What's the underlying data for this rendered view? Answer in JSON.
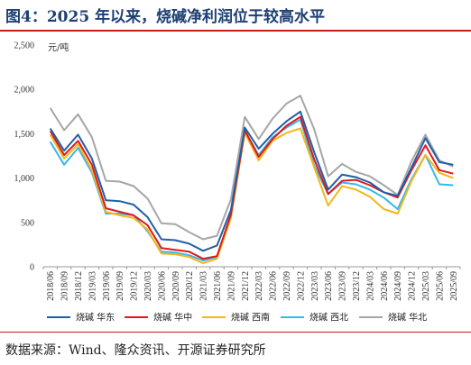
{
  "title": "图4：2025 年以来，烧碱净利润位于较高水平",
  "source": "数据来源：Wind、隆众资讯、开源证券研究所",
  "chart_data": {
    "type": "line",
    "ylabel": "元/吨",
    "ylim": [
      0,
      2500
    ],
    "yticks": [
      "0",
      "500",
      "1,000",
      "1,500",
      "2,000",
      "2,500"
    ],
    "grid": false,
    "legend_position": "bottom",
    "categories": [
      "2018/06",
      "2018/09",
      "2018/12",
      "2019/03",
      "2019/06",
      "2019/09",
      "2019/12",
      "2020/03",
      "2020/06",
      "2020/09",
      "2020/12",
      "2021/03",
      "2021/06",
      "2021/09",
      "2021/12",
      "2022/03",
      "2022/06",
      "2022/09",
      "2022/12",
      "2023/03",
      "2023/06",
      "2023/09",
      "2023/12",
      "2024/03",
      "2024/06",
      "2024/09",
      "2024/12",
      "2025/03",
      "2025/06",
      "2025/09"
    ],
    "series": [
      {
        "name": "烧碱 华东",
        "color": "#1f5fa8",
        "values": [
          1560,
          1310,
          1490,
          1220,
          750,
          740,
          700,
          560,
          310,
          300,
          260,
          180,
          240,
          640,
          1570,
          1330,
          1500,
          1640,
          1750,
          1290,
          870,
          1040,
          1010,
          950,
          840,
          800,
          1120,
          1450,
          1180,
          1150
        ]
      },
      {
        "name": "烧碱 华中",
        "color": "#e0191c",
        "values": [
          1530,
          1260,
          1420,
          1150,
          660,
          620,
          580,
          470,
          210,
          190,
          170,
          90,
          120,
          590,
          1540,
          1240,
          1440,
          1590,
          1690,
          1210,
          820,
          970,
          980,
          920,
          840,
          780,
          1090,
          1370,
          1090,
          1050
        ]
      },
      {
        "name": "烧碱 西南",
        "color": "#f2b71a",
        "values": [
          1490,
          1220,
          1380,
          1090,
          620,
          580,
          550,
          420,
          150,
          140,
          110,
          40,
          90,
          550,
          1510,
          1200,
          1420,
          1510,
          1560,
          1120,
          690,
          910,
          870,
          790,
          650,
          600,
          970,
          1260,
          1060,
          1000
        ]
      },
      {
        "name": "烧碱 西北",
        "color": "#35b8ee",
        "values": [
          1410,
          1150,
          1340,
          1060,
          600,
          600,
          580,
          400,
          170,
          160,
          130,
          70,
          110,
          560,
          1530,
          1260,
          1460,
          1570,
          1660,
          1140,
          820,
          950,
          930,
          870,
          780,
          650,
          990,
          1260,
          930,
          920
        ]
      },
      {
        "name": "烧碱 华北",
        "color": "#a6a6a6",
        "values": [
          1790,
          1540,
          1720,
          1460,
          970,
          960,
          910,
          770,
          490,
          480,
          390,
          310,
          350,
          760,
          1690,
          1440,
          1670,
          1840,
          1930,
          1550,
          1020,
          1160,
          1070,
          1020,
          920,
          810,
          1190,
          1490,
          1200,
          1130
        ]
      }
    ]
  }
}
